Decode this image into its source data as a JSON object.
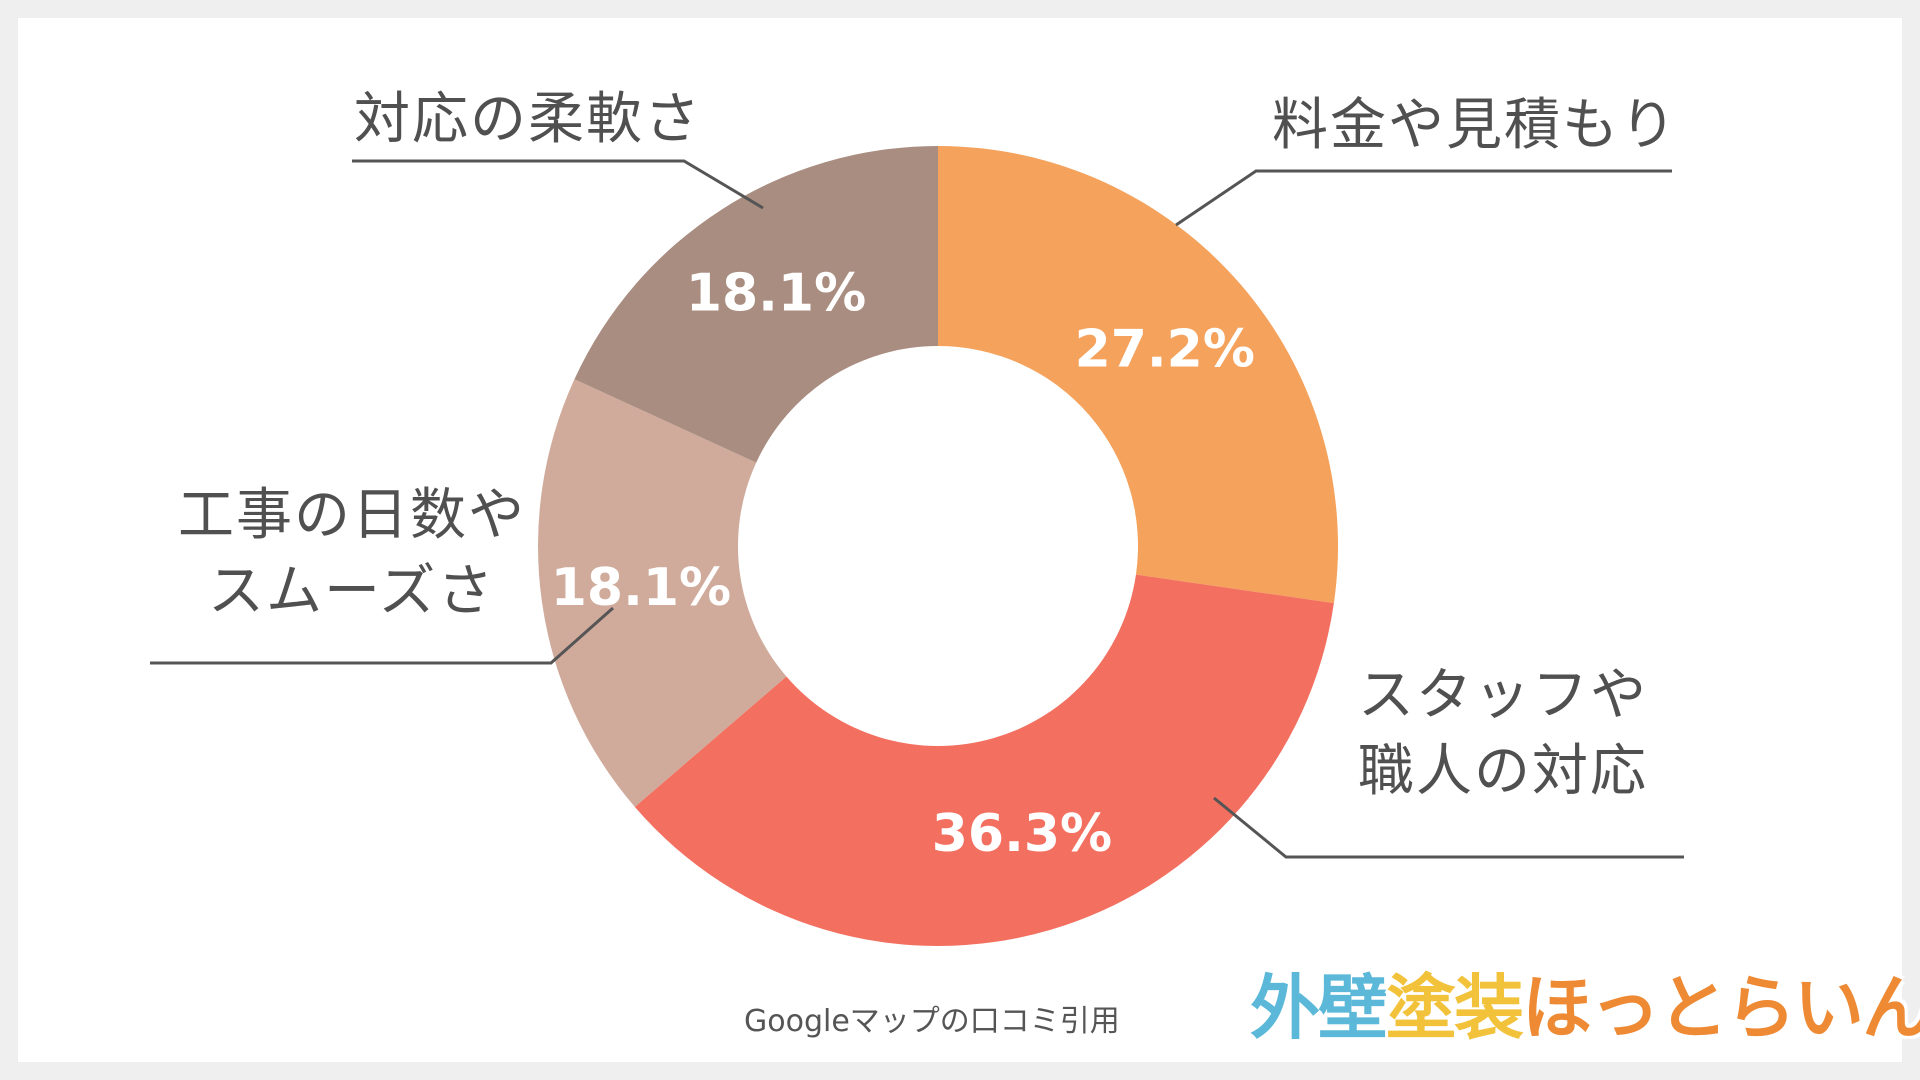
{
  "chart_data": {
    "type": "pie",
    "categories": [
      "料金や見積もり",
      "スタッフや職人の対応",
      "工事の日数やスムーズさ",
      "対応の柔軟さ"
    ],
    "values": [
      27.2,
      36.3,
      18.1,
      18.1
    ],
    "value_labels": [
      "27.2%",
      "36.3%",
      "18.1%",
      "18.1%"
    ],
    "colors": [
      "#F4A25C",
      "#F36F5F",
      "#D0AB9C",
      "#A98D80"
    ],
    "donut": true,
    "start_angle": "12 o'clock",
    "direction": "clockwise"
  },
  "labels": {
    "pricing": "料金や見積もり",
    "staff_line1": "スタッフや",
    "staff_line2": "職人の対応",
    "days_line1": "工事の日数や",
    "days_line2": "スムーズさ",
    "flexibility": "対応の柔軟さ"
  },
  "source": "Googleマップの口コミ引用",
  "logo": {
    "text": "外壁塗装ほっとらいん",
    "part1": "外壁",
    "part2": "塗装",
    "part3": "ほっとらいん",
    "color1": "#5BB8D8",
    "color2": "#F2C23A",
    "color3": "#EE8A34"
  }
}
